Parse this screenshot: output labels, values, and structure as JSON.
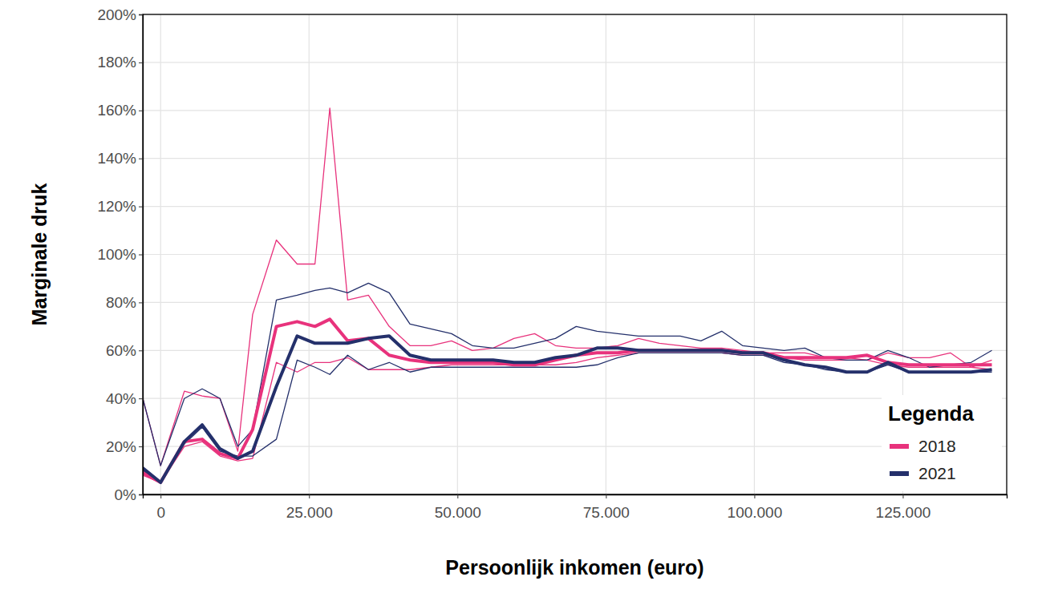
{
  "chart_data": {
    "type": "line",
    "x_label": "Persoonlijk inkomen (euro)",
    "y_label": "Marginale druk",
    "legend_title": "Legenda",
    "legend": "bottom-right",
    "grid": true,
    "x": [
      -3000,
      0,
      4000,
      7000,
      10000,
      13000,
      15500,
      19500,
      23000,
      26000,
      28500,
      31500,
      35000,
      38500,
      42000,
      45500,
      49000,
      52500,
      56000,
      59500,
      63000,
      66500,
      70000,
      73500,
      77000,
      80500,
      84000,
      87500,
      91000,
      94500,
      98000,
      101500,
      105000,
      108500,
      112000,
      115500,
      119000,
      122500,
      126000,
      129500,
      133000,
      136500,
      140000
    ],
    "xlim": [
      -3000,
      142500
    ],
    "xticks": [
      0,
      {
        "value": 25000,
        "label": "25.000"
      },
      {
        "value": 50000,
        "label": "50.000"
      },
      {
        "value": 75000,
        "label": "75.000"
      },
      {
        "value": 100000,
        "label": "100.000"
      },
      {
        "value": 125000,
        "label": "125.000"
      }
    ],
    "ylim": [
      0,
      200
    ],
    "yticks": [
      {
        "value": 0,
        "label": "0%"
      },
      {
        "value": 20,
        "label": "20%"
      },
      {
        "value": 40,
        "label": "40%"
      },
      {
        "value": 60,
        "label": "60%"
      },
      {
        "value": 80,
        "label": "80%"
      },
      {
        "value": 100,
        "label": "100%"
      },
      {
        "value": 120,
        "label": "120%"
      },
      {
        "value": 140,
        "label": "140%"
      },
      {
        "value": 160,
        "label": "160%"
      },
      {
        "value": 180,
        "label": "180%"
      },
      {
        "value": 200,
        "label": "200%"
      }
    ],
    "series": [
      {
        "color": "#e8327c",
        "line_style": "thin",
        "values": [
          40,
          12,
          43,
          41,
          40,
          18,
          75,
          106,
          96,
          96,
          161,
          81,
          83,
          70,
          62,
          62,
          64,
          60,
          61,
          65,
          67,
          62,
          61,
          61,
          62,
          65,
          63,
          62,
          61,
          61,
          60,
          59,
          59,
          59,
          57,
          57,
          56,
          59,
          57,
          57,
          59,
          53,
          56
        ]
      },
      {
        "color": "#e8327c",
        "line_style": "thin",
        "values": [
          8,
          5,
          20,
          22,
          16,
          14,
          15,
          55,
          51,
          55,
          55,
          57,
          52,
          52,
          52,
          53,
          54,
          54,
          54,
          54,
          54,
          54,
          55,
          57,
          58,
          59,
          59,
          59,
          59,
          59,
          58,
          58,
          57,
          56,
          56,
          56,
          56,
          54,
          53,
          53,
          53,
          53,
          52
        ]
      },
      {
        "color": "#24306b",
        "line_style": "thin",
        "values": [
          40,
          12,
          40,
          44,
          40,
          20,
          27,
          81,
          83,
          85,
          86,
          84,
          88,
          84,
          71,
          69,
          67,
          62,
          61,
          61,
          63,
          65,
          70,
          68,
          67,
          66,
          66,
          66,
          64,
          68,
          62,
          61,
          60,
          61,
          57,
          56,
          56,
          60,
          57,
          53,
          54,
          55,
          60
        ]
      },
      {
        "color": "#24306b",
        "line_style": "thin",
        "values": [
          10,
          5,
          21,
          28,
          18,
          16,
          16,
          23,
          56,
          53,
          50,
          58,
          52,
          55,
          51,
          53,
          53,
          53,
          53,
          53,
          53,
          53,
          53,
          54,
          57,
          59,
          59,
          59,
          59,
          59,
          58,
          58,
          55,
          54,
          52,
          51,
          51,
          54,
          51,
          51,
          51,
          51,
          51
        ]
      },
      {
        "name": "2018",
        "color": "#e8327c",
        "line_style": "thick",
        "values": [
          9,
          5,
          22,
          23,
          17,
          15,
          27,
          70,
          72,
          70,
          73,
          64,
          65,
          58,
          56,
          55,
          55,
          55,
          55,
          54,
          54,
          56,
          58,
          59,
          59,
          60,
          60,
          60,
          60,
          60,
          59,
          59,
          57,
          57,
          57,
          57,
          58,
          55,
          54,
          54,
          54,
          54,
          54
        ]
      },
      {
        "name": "2021",
        "color": "#24306b",
        "line_style": "thick",
        "values": [
          11,
          5,
          22,
          29,
          19,
          15,
          18,
          45,
          66,
          63,
          63,
          63,
          65,
          66,
          58,
          56,
          56,
          56,
          56,
          55,
          55,
          57,
          58,
          61,
          61,
          60,
          60,
          60,
          60,
          60,
          59,
          59,
          56,
          54,
          53,
          51,
          51,
          55,
          51,
          51,
          51,
          51,
          52
        ]
      }
    ]
  }
}
